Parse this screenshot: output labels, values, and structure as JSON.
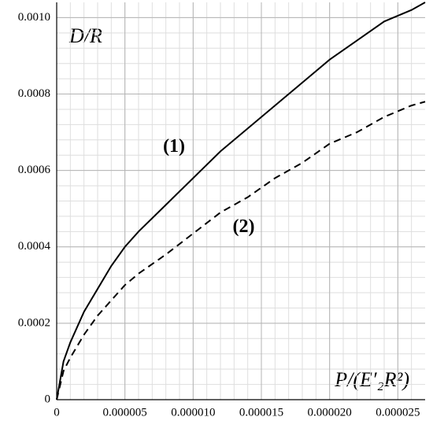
{
  "chart_data": {
    "type": "line",
    "y_label": "D/R",
    "x_label": "P/(E′₂R²)",
    "x": [
      0,
      5e-07,
      1e-06,
      2e-06,
      3e-06,
      4e-06,
      5e-06,
      6e-06,
      8e-06,
      1e-05,
      1.2e-05,
      1.4e-05,
      1.6e-05,
      1.8e-05,
      2e-05,
      2.2e-05,
      2.4e-05,
      2.6e-05,
      2.7e-05
    ],
    "series": [
      {
        "name": "(1)",
        "color": "#000000",
        "dashed": false,
        "values": [
          0,
          0.0001,
          0.00015,
          0.00023,
          0.00029,
          0.00035,
          0.0004,
          0.00044,
          0.00051,
          0.00058,
          0.00065,
          0.00071,
          0.00077,
          0.00083,
          0.00089,
          0.00094,
          0.00099,
          0.00102,
          0.00104
        ]
      },
      {
        "name": "(2)",
        "color": "#000000",
        "dashed": true,
        "values": [
          0,
          7.5e-05,
          0.00011,
          0.00017,
          0.00022,
          0.00026,
          0.0003,
          0.00033,
          0.00038,
          0.000435,
          0.00049,
          0.00053,
          0.00058,
          0.00062,
          0.00067,
          0.0007,
          0.00074,
          0.00077,
          0.00078
        ]
      }
    ],
    "xlim": [
      0,
      2.7e-05
    ],
    "ylim": [
      0,
      0.00104
    ],
    "xticks": [
      0,
      5e-06,
      {
        "value": 1e-05,
        "label": "0.000010"
      },
      1.5e-05,
      {
        "value": 2e-05,
        "label": "0.000020"
      },
      2.5e-05
    ],
    "yticks": [
      0,
      0.0002,
      0.0004,
      0.0006,
      0.0008,
      {
        "value": 0.001,
        "label": "0.0010"
      }
    ],
    "grid": true,
    "minor_grid_divisions": 5
  }
}
